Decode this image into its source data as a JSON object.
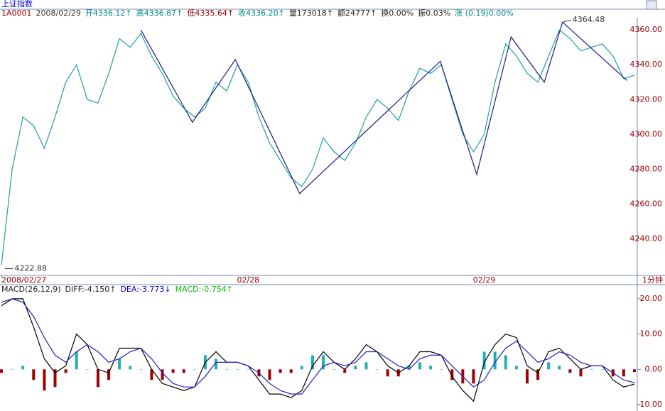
{
  "chart_data": [
    {
      "type": "line",
      "title": "上证指数",
      "info": [
        {
          "text": "1A0001",
          "color": "#a00000"
        },
        {
          "text": "2008/02/29",
          "color": "#333333"
        },
        {
          "text": "开4336.12↑",
          "color": "#008888"
        },
        {
          "text": "高4336.87↑",
          "color": "#008888"
        },
        {
          "text": "低4335.64↑",
          "color": "#a00000"
        },
        {
          "text": "收4336.20↑",
          "color": "#008888"
        },
        {
          "text": "量173018↑",
          "color": "#222222"
        },
        {
          "text": "额24777↑",
          "color": "#222222"
        },
        {
          "text": "换0.00%",
          "color": "#222222"
        },
        {
          "text": "振0.03%",
          "color": "#222222"
        },
        {
          "text": "涨 (0.19)0.00%",
          "color": "#008888"
        }
      ],
      "period": "1分钟",
      "xlim": [
        0,
        59
      ],
      "xticks": [
        {
          "value": 0,
          "label": "2008/02/27"
        },
        {
          "value": 23,
          "label": "02/28"
        },
        {
          "value": 45,
          "label": "02/29"
        }
      ],
      "ylim": [
        4219,
        4367
      ],
      "yticks": [
        {
          "value": 4240,
          "label": "4240.00"
        },
        {
          "value": 4260,
          "label": "4260.00"
        },
        {
          "value": 4280,
          "label": "4280.00"
        },
        {
          "value": 4300,
          "label": "4300.00"
        },
        {
          "value": 4320,
          "label": "4320.00"
        },
        {
          "value": 4340,
          "label": "4340.00"
        },
        {
          "value": 4360,
          "label": "4360.00"
        }
      ],
      "series": [
        {
          "color": "#20a0a0",
          "x": [
            0,
            1,
            2,
            3,
            4,
            5,
            6,
            7,
            8,
            9,
            10,
            11,
            12,
            13,
            14,
            15,
            16,
            17,
            18,
            19,
            20,
            21,
            22,
            23,
            24,
            25,
            26,
            27,
            28,
            29,
            30,
            31,
            32,
            33,
            34,
            35,
            36,
            37,
            38,
            39,
            40,
            41,
            42,
            43,
            44,
            45,
            46,
            47,
            48,
            49,
            50,
            51,
            52,
            53,
            54,
            55,
            56,
            57,
            58,
            59
          ],
          "values": [
            4225,
            4280,
            4310,
            4305,
            4292,
            4310,
            4330,
            4340,
            4320,
            4318,
            4335,
            4355,
            4350,
            4358,
            4345,
            4335,
            4322,
            4315,
            4310,
            4315,
            4330,
            4325,
            4340,
            4330,
            4310,
            4295,
            4285,
            4275,
            4270,
            4280,
            4298,
            4290,
            4285,
            4295,
            4310,
            4320,
            4315,
            4308,
            4325,
            4338,
            4335,
            4340,
            4320,
            4300,
            4290,
            4300,
            4330,
            4352,
            4345,
            4335,
            4330,
            4345,
            4360,
            4355,
            4348,
            4350,
            4352,
            4345,
            4332,
            4334
          ]
        },
        {
          "color": "#1a1a8c",
          "x": [
            13,
            17.8,
            21.8,
            27.8,
            40.9,
            44.3,
            47.5,
            50.6,
            52.3,
            58.3
          ],
          "values": [
            4360,
            4307,
            4343,
            4266,
            4342,
            4277,
            4356,
            4330,
            4364.48,
            4331
          ]
        }
      ],
      "annotations": [
        {
          "x": 52.3,
          "y": 4364.48
        },
        {
          "x": 0.3,
          "y": 4222.88
        }
      ]
    },
    {
      "type": "macd",
      "header": [
        {
          "text": "MACD(26,12,9)",
          "color": "#222222"
        },
        {
          "text": "DIFF:-4.150↑",
          "color": "#222222"
        },
        {
          "text": "DEA:-3.773↓",
          "color": "#0000cc"
        },
        {
          "text": "MACD:-0.754↑",
          "color": "#00bb00"
        }
      ],
      "xlim": [
        0,
        59
      ],
      "ylim": [
        -11.8,
        24
      ],
      "yticks": [
        {
          "value": -10,
          "label": "-10.00"
        },
        {
          "value": 0,
          "label": "0.00"
        },
        {
          "value": 10,
          "label": "10.00"
        },
        {
          "value": 20,
          "label": "20.00"
        }
      ],
      "x": [
        0,
        1,
        2,
        3,
        4,
        5,
        6,
        7,
        8,
        9,
        10,
        11,
        12,
        13,
        14,
        15,
        16,
        17,
        18,
        19,
        20,
        21,
        22,
        23,
        24,
        25,
        26,
        27,
        28,
        29,
        30,
        31,
        32,
        33,
        34,
        35,
        36,
        37,
        38,
        39,
        40,
        41,
        42,
        43,
        44,
        45,
        46,
        47,
        48,
        49,
        50,
        51,
        52,
        53,
        54,
        55,
        56,
        57,
        58,
        59
      ],
      "series": [
        {
          "type": "bar",
          "color": "#20b0b0",
          "negative_color": "#a00000",
          "values": [
            -1,
            0,
            1,
            -3,
            -6,
            -5,
            -1,
            5,
            0,
            -5,
            -3,
            3,
            1,
            0,
            -3,
            -3,
            -1,
            -1,
            0,
            4,
            3,
            0,
            0,
            0,
            -2,
            -3,
            -1,
            -1,
            1,
            4,
            4,
            0,
            -1,
            1,
            2,
            0,
            -2,
            -2,
            1,
            2,
            1,
            0,
            -3,
            -4,
            -4,
            5,
            5,
            4,
            1,
            -4,
            -3,
            2,
            1,
            -1,
            -2,
            0,
            0,
            -2,
            -2,
            -0.754
          ]
        },
        {
          "type": "line",
          "color": "#000000",
          "values": [
            18,
            20,
            20,
            12,
            3,
            -1,
            1,
            10,
            7,
            0,
            -1,
            6,
            6,
            6,
            0,
            -4,
            -5,
            -6,
            -5,
            2,
            5,
            2,
            2,
            1,
            -3,
            -7,
            -7,
            -8,
            -6,
            1,
            5,
            2,
            0,
            3,
            7,
            5,
            1,
            -1,
            1,
            5,
            5,
            4,
            -2,
            -6,
            -9,
            2,
            7,
            10,
            9,
            1,
            -1,
            5,
            6,
            3,
            0,
            1,
            1,
            -3,
            -5,
            -4.15
          ]
        },
        {
          "type": "line",
          "color": "#2020d0",
          "values": [
            19,
            20,
            19,
            15,
            9,
            4,
            2,
            5,
            7,
            5,
            2,
            3,
            5,
            6,
            3,
            -1,
            -4,
            -5,
            -5,
            -2,
            2,
            2,
            2,
            1,
            -1,
            -4,
            -6,
            -7,
            -7,
            -3,
            1,
            2,
            1,
            2,
            5,
            5,
            3,
            1,
            0,
            3,
            4,
            4,
            1,
            -2,
            -5,
            -3,
            2,
            6,
            8,
            5,
            2,
            3,
            5,
            4,
            2,
            1,
            1,
            -1,
            -3,
            -3.773
          ]
        }
      ]
    }
  ]
}
